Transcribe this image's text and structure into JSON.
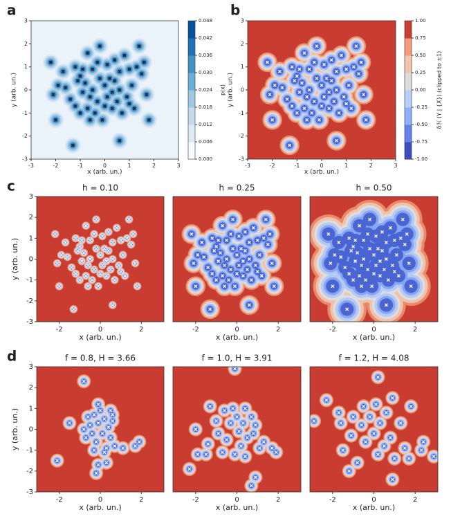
{
  "samples": {
    "x": [
      -2.2,
      -1.9,
      -2.1,
      -2.0,
      -1.7,
      -1.6,
      -1.4,
      -1.2,
      -1.1,
      -1.0,
      -1.0,
      -0.9,
      -0.8,
      -0.7,
      -0.7,
      -0.6,
      -0.5,
      -0.5,
      -0.4,
      -0.3,
      -0.3,
      -0.2,
      -0.1,
      0.0,
      0.1,
      0.1,
      0.2,
      0.3,
      0.3,
      0.4,
      0.4,
      0.5,
      0.6,
      0.6,
      0.7,
      0.8,
      0.9,
      1.0,
      1.1,
      1.2,
      1.3,
      1.5,
      1.6,
      1.8,
      1.7,
      1.4,
      -1.3,
      0.6,
      -0.2,
      -1.2,
      -0.6,
      0.0,
      1.0,
      -0.9
    ],
    "y": [
      1.2,
      0.2,
      -0.2,
      -1.3,
      0.8,
      0.1,
      -0.4,
      -0.7,
      0.4,
      -1.0,
      0.6,
      -0.1,
      0.3,
      -0.8,
      1.6,
      -0.3,
      0.9,
      0.0,
      -1.0,
      1.2,
      -0.5,
      0.5,
      -1.3,
      0.2,
      -0.3,
      1.1,
      0.5,
      -0.1,
      -0.8,
      0.4,
      1.3,
      -0.5,
      0.8,
      0.0,
      -1.0,
      1.5,
      -0.3,
      0.9,
      0.2,
      -0.8,
      1.0,
      0.7,
      1.2,
      -1.3,
      -0.2,
      1.9,
      -2.4,
      -2.2,
      1.9,
      1.0,
      -1.3,
      -0.7,
      -0.6,
      0.9
    ]
  },
  "chart_data": [
    {
      "type": "heatmap",
      "cmap": "Blues",
      "panel_label": "a",
      "xlabel": "x (arb. un.)",
      "ylabel": "y (arb. un.)",
      "xlim": [
        -3,
        3
      ],
      "ylim": [
        -3,
        3
      ],
      "xticks": [
        -3,
        -2,
        -1,
        0,
        1,
        2,
        3
      ],
      "yticks": [
        -3,
        -2,
        -1,
        0,
        1,
        2,
        3
      ],
      "colorbar": {
        "label": "p(x)",
        "lim": [
          0,
          0.048
        ],
        "ticks": [
          {
            "value": 0,
            "label": "0.000"
          },
          {
            "value": 0.006,
            "label": "0.006"
          },
          {
            "value": 0.012,
            "label": "0.012"
          },
          {
            "value": 0.018,
            "label": "0.018"
          },
          {
            "value": 0.024,
            "label": "0.024"
          },
          {
            "value": 0.03,
            "label": "0.030"
          },
          {
            "value": 0.036,
            "label": "0.036"
          },
          {
            "value": 0.042,
            "label": "0.042"
          },
          {
            "value": 0.048,
            "label": "0.048"
          }
        ]
      }
    },
    {
      "type": "heatmap",
      "cmap": "coolwarm",
      "panel_label": "b",
      "xlabel": "x (arb. un.)",
      "ylabel": "y (arb. un.)",
      "xlim": [
        -3,
        3
      ],
      "ylim": [
        -3,
        3
      ],
      "xticks": [
        -3,
        -2,
        -1,
        0,
        1,
        2,
        3
      ],
      "yticks": [
        -3,
        -2,
        -1,
        0,
        1,
        2,
        3
      ],
      "colorbar": {
        "label": "δℋ (Y | {X}) (clipped to ±1)",
        "lim": [
          -1,
          1
        ],
        "ticks": [
          {
            "value": -1,
            "label": "-1.00"
          },
          {
            "value": -0.75,
            "label": "-0.75"
          },
          {
            "value": -0.5,
            "label": "-0.50"
          },
          {
            "value": -0.25,
            "label": "-0.25"
          },
          {
            "value": 0,
            "label": "0.00"
          },
          {
            "value": 0.25,
            "label": "0.25"
          },
          {
            "value": 0.5,
            "label": "0.50"
          },
          {
            "value": 0.75,
            "label": "0.75"
          },
          {
            "value": 1,
            "label": "1.00"
          }
        ]
      }
    },
    {
      "type": "heatmap",
      "cmap": "coolwarm",
      "panel_label": "c",
      "title": "h = 0.10",
      "xlabel": "x (arb. un.)",
      "ylabel": "y (arb. un.)",
      "xlim": [
        -3.1,
        3.1
      ],
      "ylim": [
        -3,
        3
      ],
      "xticks": [
        -2,
        0,
        2
      ],
      "yticks": [
        -3,
        -2,
        -1,
        0,
        1,
        2,
        3
      ]
    },
    {
      "type": "heatmap",
      "cmap": "coolwarm",
      "title": "h = 0.25",
      "xlabel": "x (arb. un.)",
      "xlim": [
        -3.1,
        3.1
      ],
      "ylim": [
        -3,
        3
      ],
      "xticks": [
        -2,
        0,
        2
      ]
    },
    {
      "type": "heatmap",
      "cmap": "coolwarm",
      "title": "h = 0.50",
      "xlabel": "x (arb. un.)",
      "xlim": [
        -3.1,
        3.1
      ],
      "ylim": [
        -3,
        3
      ],
      "xticks": [
        -2,
        0,
        2
      ]
    },
    {
      "type": "heatmap",
      "cmap": "coolwarm",
      "panel_label": "d",
      "title": "f = 0.8, H = 3.66",
      "xlabel": "x (arb. un.)",
      "ylabel": "y (arb. un.)",
      "xlim": [
        -3.1,
        3.1
      ],
      "ylim": [
        -3,
        3
      ],
      "xticks": [
        -2,
        0,
        2
      ],
      "yticks": [
        -3,
        -2,
        -1,
        0,
        1,
        2,
        3
      ],
      "x": [
        -0.8,
        -1.5,
        -2.1,
        1.7,
        1.9,
        -0.1,
        -0.2,
        0.3,
        1.1,
        0.6,
        -0.6,
        -0.5,
        -0.4,
        -0.3,
        -0.2,
        -0.1,
        0.0,
        0.1,
        0.2,
        0.3,
        0.4,
        0.5,
        0.6,
        -0.7,
        -0.8,
        -0.3,
        0.2,
        0.7,
        -0.1,
        0.5
      ],
      "y": [
        2.3,
        0.3,
        -1.5,
        -0.8,
        -0.6,
        -1.7,
        -2.1,
        -1.6,
        -0.9,
        0.7,
        0.6,
        0.2,
        -0.2,
        0.7,
        -0.6,
        0.3,
        0.9,
        -0.2,
        0.5,
        -0.9,
        0.1,
        -0.4,
        0.4,
        -0.4,
        0.0,
        -1.0,
        -1.1,
        -0.8,
        1.2,
        0.9
      ]
    },
    {
      "type": "heatmap",
      "cmap": "coolwarm",
      "title": "f = 1.0, H = 3.91",
      "xlabel": "x (arb. un.)",
      "xlim": [
        -3.1,
        3.1
      ],
      "ylim": [
        -3,
        3
      ],
      "xticks": [
        -2,
        0,
        2
      ],
      "x": [
        -1.3,
        -2.0,
        -1.9,
        -2.3,
        -1.4,
        -1.0,
        -0.9,
        -0.6,
        -0.5,
        -0.3,
        -0.2,
        0.0,
        0.1,
        0.2,
        0.3,
        0.4,
        0.5,
        0.7,
        0.8,
        0.9,
        1.1,
        1.3,
        1.7,
        1.9,
        -0.1,
        0.9,
        0.7,
        -0.1,
        -0.7,
        -1.5,
        0.4
      ],
      "y": [
        1.1,
        0.0,
        -1.2,
        -1.9,
        -0.7,
        0.4,
        -0.2,
        0.9,
        -0.5,
        0.3,
        1.0,
        0.6,
        -0.1,
        -0.8,
        0.3,
        1.0,
        -0.4,
        0.6,
        -0.2,
        0.2,
        -0.9,
        -0.6,
        -0.9,
        -1.1,
        2.9,
        -2.3,
        -2.7,
        -1.2,
        -1.1,
        -1.2,
        -1.3
      ]
    },
    {
      "type": "heatmap",
      "cmap": "coolwarm",
      "title": "f = 1.2, H = 4.08",
      "xlabel": "x (arb. un.)",
      "xlim": [
        -3.1,
        3.1
      ],
      "ylim": [
        -3,
        3
      ],
      "xticks": [
        -2,
        0,
        2
      ],
      "x": [
        -2.9,
        -2.3,
        -1.7,
        -1.6,
        -1.5,
        -1.1,
        -1.0,
        -0.8,
        -0.6,
        -0.5,
        -0.4,
        -0.2,
        0.0,
        0.1,
        0.2,
        0.3,
        0.5,
        0.6,
        0.8,
        0.9,
        1.0,
        1.3,
        1.5,
        1.8,
        2.3,
        2.9,
        2.4,
        0.2,
        -1.2,
        0.9,
        1.7
      ],
      "y": [
        0.4,
        1.4,
        0.8,
        0.3,
        -1.0,
        -0.3,
        0.6,
        -1.6,
        0.2,
        1.1,
        -0.6,
        0.6,
        -0.2,
        1.2,
        -1.2,
        0.3,
        -0.8,
        0.8,
        -0.4,
        1.5,
        -1.4,
        0.3,
        -0.9,
        1.1,
        -1.0,
        -1.3,
        -0.6,
        2.5,
        -2.0,
        -2.4,
        -1.4
      ]
    }
  ]
}
